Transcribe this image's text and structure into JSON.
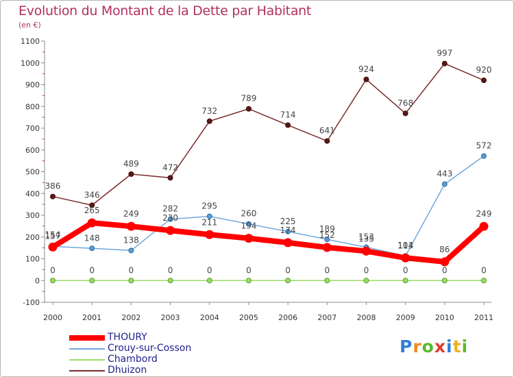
{
  "header": {
    "title": "Evolution du Montant de la Dette par Habitant",
    "subtitle": "(en €)"
  },
  "chart_data": {
    "type": "line",
    "title": "Evolution du Montant de la Dette par Habitant",
    "subtitle": "(en €)",
    "xlabel": "",
    "ylabel": "(en €)",
    "ylim": [
      -100,
      1100
    ],
    "y_ticks": [
      "-100",
      "0",
      "100",
      "200",
      "300",
      "400",
      "500",
      "600",
      "700",
      "800",
      "900",
      "1000",
      "1100"
    ],
    "categories": [
      "2000",
      "2001",
      "2002",
      "2003",
      "2004",
      "2005",
      "2006",
      "2007",
      "2008",
      "2009",
      "2010",
      "2011"
    ],
    "grid": false,
    "legend_position": "bottom-left",
    "series": [
      {
        "name": "THOURY",
        "color": "#ff0000",
        "values": [
          154,
          265,
          249,
          230,
          211,
          194,
          174,
          152,
          135,
          104,
          86,
          249
        ],
        "labels": [
          "154",
          "265",
          "249",
          "230",
          "211",
          "194",
          "174",
          "152",
          "135",
          "104",
          "86",
          "249"
        ]
      },
      {
        "name": "Crouy-sur-Cosson",
        "color": "#6fa8dc",
        "values": [
          157,
          148,
          138,
          282,
          295,
          260,
          225,
          189,
          153,
          113,
          443,
          572
        ],
        "labels": [
          "157",
          "148",
          "138",
          "282",
          "295",
          "260",
          "225",
          "189",
          "153",
          "113",
          "443",
          "572"
        ]
      },
      {
        "name": "Chambord",
        "color": "#99dd66",
        "values": [
          0,
          0,
          0,
          0,
          0,
          0,
          0,
          0,
          0,
          0,
          0,
          0
        ],
        "labels": [
          "0",
          "0",
          "0",
          "0",
          "0",
          "0",
          "0",
          "0",
          "0",
          "0",
          "0",
          "0"
        ]
      },
      {
        "name": "Dhuizon",
        "color": "#7a2a2a",
        "values": [
          386,
          346,
          489,
          472,
          732,
          789,
          714,
          641,
          924,
          768,
          997,
          920
        ],
        "labels": [
          "386",
          "346",
          "489",
          "472",
          "732",
          "789",
          "714",
          "641",
          "924",
          "768",
          "997",
          "920"
        ]
      }
    ]
  },
  "brand": {
    "name": "Proxiti",
    "letters": [
      "P",
      "r",
      "o",
      "x",
      "i",
      "t",
      "i"
    ],
    "letter_colors": [
      "#2f7fd8",
      "#f08a1c",
      "#5cb82e",
      "#e23b2e",
      "#2f7fd8",
      "#f0b01c",
      "#5cb82e"
    ]
  }
}
